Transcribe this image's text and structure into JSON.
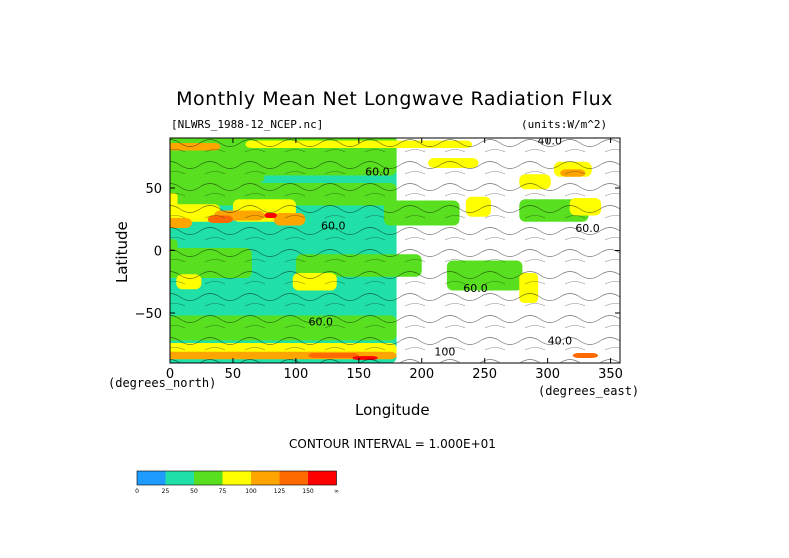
{
  "header": {
    "title": "Monthly Mean Net Longwave Radiation Flux",
    "file_label": "[NLWRS_1988-12_NCEP.nc]",
    "units_label": "(units:W/m^2)"
  },
  "footer": {
    "contour_interval": "CONTOUR INTERVAL = 1.000E+01"
  },
  "chart_data": {
    "type": "heatmap",
    "title": "Monthly Mean Net Longwave Radiation Flux",
    "xlabel": "Longitude",
    "ylabel": "Latitude",
    "x_unit": "(degrees_east)",
    "y_unit": "(degrees_north)",
    "xlim": [
      0,
      357.5
    ],
    "ylim": [
      -90,
      90
    ],
    "x_ticks": [
      0,
      50,
      100,
      150,
      200,
      250,
      300,
      350
    ],
    "x_tick_labels": [
      "0",
      "50",
      "100",
      "150",
      "200",
      "250",
      "300",
      "350"
    ],
    "y_ticks": [
      50,
      0,
      -50
    ],
    "y_tick_labels": [
      "50",
      "0",
      "−50"
    ],
    "contour_labels": [
      {
        "text": "40.0",
        "lon": 292,
        "lat": 85
      },
      {
        "text": "60.0",
        "lon": 155,
        "lat": 60
      },
      {
        "text": "60.0",
        "lon": 120,
        "lat": 17
      },
      {
        "text": "60.0",
        "lon": 322,
        "lat": 15
      },
      {
        "text": "60.0",
        "lon": 233,
        "lat": -33
      },
      {
        "text": "60.0",
        "lon": 110,
        "lat": -60
      },
      {
        "text": "100",
        "lon": 210,
        "lat": -84
      },
      {
        "text": "40.0",
        "lon": 300,
        "lat": -75
      }
    ],
    "colorbar": {
      "levels": [
        "0",
        "25",
        "50",
        "75",
        "100",
        "125",
        "150",
        "∞"
      ],
      "colors": [
        "#1e9bff",
        "#20e0a8",
        "#58e020",
        "#ffff00",
        "#ffa500",
        "#ff6a00",
        "#ff0000"
      ]
    },
    "regions": [
      {
        "level": 1,
        "lon": 0,
        "lat": 0,
        "w": 360,
        "h": 180
      },
      {
        "level": 2,
        "lon": 0,
        "lat": 80,
        "w": 360,
        "h": 40
      },
      {
        "level": 2,
        "lon": 0,
        "lat": 45,
        "w": 360,
        "h": 18
      },
      {
        "level": 2,
        "lon": 30,
        "lat": -10,
        "w": 70,
        "h": 24
      },
      {
        "level": 2,
        "lon": 150,
        "lat": -12,
        "w": 100,
        "h": 18
      },
      {
        "level": 2,
        "lon": 250,
        "lat": -20,
        "w": 60,
        "h": 24
      },
      {
        "level": 2,
        "lon": 0,
        "lat": -62,
        "w": 360,
        "h": 20
      },
      {
        "level": 2,
        "lon": 200,
        "lat": 30,
        "w": 60,
        "h": 20
      },
      {
        "level": 2,
        "lon": 305,
        "lat": 32,
        "w": 55,
        "h": 18
      },
      {
        "level": 2,
        "lon": 30,
        "lat": 60,
        "w": 90,
        "h": 12
      },
      {
        "level": 2,
        "lon": 0,
        "lat": 0,
        "w": 12,
        "h": 18
      },
      {
        "level": 3,
        "lon": 10,
        "lat": 30,
        "w": 60,
        "h": 14
      },
      {
        "level": 3,
        "lon": 75,
        "lat": 32,
        "w": 50,
        "h": 18
      },
      {
        "level": 3,
        "lon": 245,
        "lat": 35,
        "w": 20,
        "h": 16
      },
      {
        "level": 3,
        "lon": 330,
        "lat": 35,
        "w": 25,
        "h": 14
      },
      {
        "level": 3,
        "lon": 0,
        "lat": 40,
        "w": 12,
        "h": 12
      },
      {
        "level": 3,
        "lon": 15,
        "lat": -25,
        "w": 20,
        "h": 12
      },
      {
        "level": 3,
        "lon": 115,
        "lat": -25,
        "w": 35,
        "h": 14
      },
      {
        "level": 3,
        "lon": 285,
        "lat": -30,
        "w": 15,
        "h": 24
      },
      {
        "level": 3,
        "lon": 0,
        "lat": -80,
        "w": 360,
        "h": 12
      },
      {
        "level": 3,
        "lon": 320,
        "lat": 65,
        "w": 30,
        "h": 12
      },
      {
        "level": 3,
        "lon": 290,
        "lat": 55,
        "w": 25,
        "h": 12
      },
      {
        "level": 3,
        "lon": 225,
        "lat": 70,
        "w": 40,
        "h": 8
      },
      {
        "level": 3,
        "lon": 150,
        "lat": 85,
        "w": 180,
        "h": 6
      },
      {
        "level": 4,
        "lon": 5,
        "lat": 22,
        "w": 25,
        "h": 8
      },
      {
        "level": 4,
        "lon": 55,
        "lat": 28,
        "w": 40,
        "h": 8
      },
      {
        "level": 4,
        "lon": 95,
        "lat": 25,
        "w": 25,
        "h": 10
      },
      {
        "level": 4,
        "lon": 60,
        "lat": -84,
        "w": 240,
        "h": 6
      },
      {
        "level": 4,
        "lon": 0,
        "lat": 83,
        "w": 80,
        "h": 6
      },
      {
        "level": 4,
        "lon": 320,
        "lat": 62,
        "w": 20,
        "h": 6
      },
      {
        "level": 5,
        "lon": 40,
        "lat": 25,
        "w": 20,
        "h": 6
      },
      {
        "level": 5,
        "lon": 130,
        "lat": -84,
        "w": 40,
        "h": 4
      },
      {
        "level": 5,
        "lon": 330,
        "lat": -84,
        "w": 20,
        "h": 4
      },
      {
        "level": 6,
        "lon": 155,
        "lat": -86,
        "w": 20,
        "h": 3
      },
      {
        "level": 6,
        "lon": 80,
        "lat": 28,
        "w": 10,
        "h": 4
      }
    ]
  }
}
